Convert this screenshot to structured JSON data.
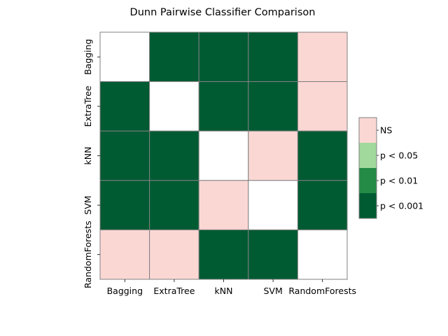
{
  "chart_data": {
    "type": "heatmap",
    "title": "Dunn Pairwise Classifier Comparison",
    "x_categories": [
      "Bagging",
      "ExtraTree",
      "kNN",
      "SVM",
      "RandomForests"
    ],
    "y_categories": [
      "Bagging",
      "ExtraTree",
      "kNN",
      "SVM",
      "RandomForests"
    ],
    "cells": [
      [
        "diag",
        "p < 0.001",
        "p < 0.001",
        "p < 0.001",
        "NS"
      ],
      [
        "p < 0.001",
        "diag",
        "p < 0.001",
        "p < 0.001",
        "NS"
      ],
      [
        "p < 0.001",
        "p < 0.001",
        "diag",
        "NS",
        "p < 0.001"
      ],
      [
        "p < 0.001",
        "p < 0.001",
        "NS",
        "diag",
        "p < 0.001"
      ],
      [
        "NS",
        "NS",
        "p < 0.001",
        "p < 0.001",
        "diag"
      ]
    ],
    "legend": {
      "placement": "right",
      "items": [
        {
          "label": "NS",
          "color": "#fbd7d4"
        },
        {
          "label": "p < 0.05",
          "color": "#a0d99b"
        },
        {
          "label": "p < 0.01",
          "color": "#238b45"
        },
        {
          "label": "p < 0.001",
          "color": "#005a32"
        }
      ]
    },
    "diagonal_color": "#ffffff",
    "grid_color": "#808080"
  }
}
